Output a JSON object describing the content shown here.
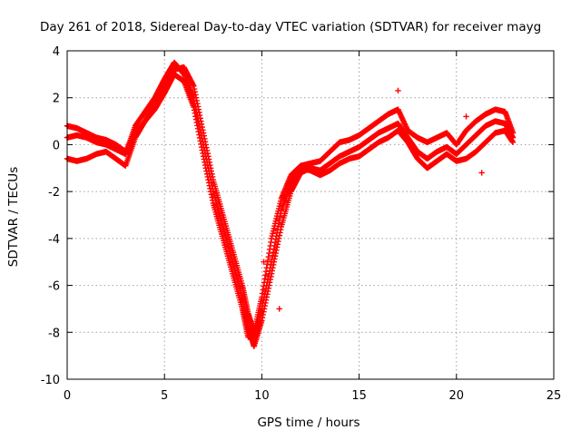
{
  "chart_data": {
    "type": "scatter",
    "title": "Day 261 of 2018, Sidereal Day-to-day VTEC variation (SDTVAR) for receiver mayg",
    "xlabel": "GPS time / hours",
    "ylabel": "SDTVAR / TECUs",
    "xlim": [
      0,
      25
    ],
    "ylim": [
      -10,
      4
    ],
    "xticks": [
      0,
      5,
      10,
      15,
      20,
      25
    ],
    "yticks": [
      -10,
      -8,
      -6,
      -4,
      -2,
      0,
      2,
      4
    ],
    "grid": true,
    "marker": "plus",
    "series": [
      {
        "name": "SDTVAR",
        "color": "#ff0000",
        "tracks": [
          {
            "x": [
              0.0,
              0.5,
              1.0,
              1.5,
              2.0,
              2.5,
              3.0,
              3.5,
              4.0,
              4.5,
              5.0,
              5.5,
              6.0,
              6.5,
              7.0,
              7.5,
              8.0,
              8.5,
              9.0,
              9.3,
              9.6,
              10.0,
              10.5,
              11.0,
              11.5,
              12.0,
              12.5,
              13.0,
              13.5,
              14.0,
              14.5,
              15.0,
              15.5,
              16.0,
              16.5,
              17.0,
              17.5,
              18.0,
              18.5,
              19.0,
              19.5,
              20.0,
              20.5,
              21.0,
              21.5,
              22.0,
              22.5,
              22.9
            ],
            "y": [
              0.8,
              0.7,
              0.5,
              0.3,
              0.2,
              0.0,
              -0.3,
              0.5,
              1.0,
              1.8,
              2.5,
              3.2,
              3.3,
              2.5,
              0.5,
              -1.5,
              -3.0,
              -4.5,
              -6.0,
              -7.2,
              -8.0,
              -6.5,
              -4.0,
              -2.3,
              -1.3,
              -0.9,
              -0.8,
              -0.7,
              -0.3,
              0.1,
              0.2,
              0.4,
              0.7,
              1.0,
              1.3,
              1.5,
              0.6,
              0.3,
              0.1,
              0.3,
              0.5,
              0.0,
              0.6,
              1.0,
              1.3,
              1.5,
              1.4,
              0.5
            ]
          },
          {
            "x": [
              0.0,
              0.5,
              1.0,
              1.5,
              2.0,
              2.5,
              3.0,
              3.5,
              4.0,
              4.5,
              5.0,
              5.5,
              6.0,
              6.5,
              7.0,
              7.5,
              8.0,
              8.5,
              9.0,
              9.3,
              9.6,
              10.0,
              10.5,
              11.0,
              11.5,
              12.0,
              12.5,
              13.0,
              13.5,
              14.0,
              14.5,
              15.0,
              15.5,
              16.0,
              16.5,
              17.0,
              17.5,
              18.0,
              18.5,
              19.0,
              19.5,
              20.0,
              20.5,
              21.0,
              21.5,
              22.0,
              22.5,
              22.9
            ],
            "y": [
              0.3,
              0.4,
              0.3,
              0.1,
              0.0,
              -0.2,
              -0.4,
              0.8,
              1.4,
              2.0,
              2.8,
              3.5,
              3.0,
              2.0,
              0.0,
              -2.0,
              -3.5,
              -5.0,
              -6.5,
              -7.8,
              -8.6,
              -7.5,
              -5.5,
              -3.5,
              -2.0,
              -1.2,
              -1.0,
              -1.1,
              -0.8,
              -0.5,
              -0.3,
              -0.1,
              0.2,
              0.5,
              0.7,
              0.9,
              0.3,
              -0.3,
              -0.6,
              -0.3,
              -0.1,
              -0.4,
              0.0,
              0.4,
              0.8,
              1.0,
              0.9,
              0.3
            ]
          },
          {
            "x": [
              0.0,
              0.5,
              1.0,
              1.5,
              2.0,
              2.5,
              3.0,
              3.5,
              4.0,
              4.5,
              5.0,
              5.5,
              6.0,
              6.5,
              7.0,
              7.5,
              8.0,
              8.5,
              9.0,
              9.3,
              9.6,
              10.0,
              10.5,
              11.0,
              11.5,
              12.0,
              12.5,
              13.0,
              13.5,
              14.0,
              14.5,
              15.0,
              15.5,
              16.0,
              16.5,
              17.0,
              17.5,
              18.0,
              18.5,
              19.0,
              19.5,
              20.0,
              20.5,
              21.0,
              21.5,
              22.0,
              22.5,
              22.9
            ],
            "y": [
              -0.6,
              -0.7,
              -0.6,
              -0.4,
              -0.3,
              -0.6,
              -0.9,
              0.3,
              1.0,
              1.5,
              2.2,
              3.0,
              2.7,
              1.6,
              -0.5,
              -2.5,
              -4.0,
              -5.5,
              -7.0,
              -8.2,
              -8.2,
              -7.0,
              -5.0,
              -2.8,
              -1.6,
              -1.0,
              -1.1,
              -1.3,
              -1.1,
              -0.8,
              -0.6,
              -0.5,
              -0.2,
              0.1,
              0.3,
              0.6,
              0.1,
              -0.6,
              -1.0,
              -0.7,
              -0.4,
              -0.7,
              -0.6,
              -0.3,
              0.1,
              0.5,
              0.6,
              0.1
            ]
          }
        ],
        "spikes": [
          {
            "x": 17.0,
            "y": 2.3
          },
          {
            "x": 21.3,
            "y": -1.2
          },
          {
            "x": 20.5,
            "y": 1.2
          },
          {
            "x": 10.1,
            "y": -5.0
          },
          {
            "x": 10.9,
            "y": -7.0
          }
        ]
      }
    ]
  }
}
